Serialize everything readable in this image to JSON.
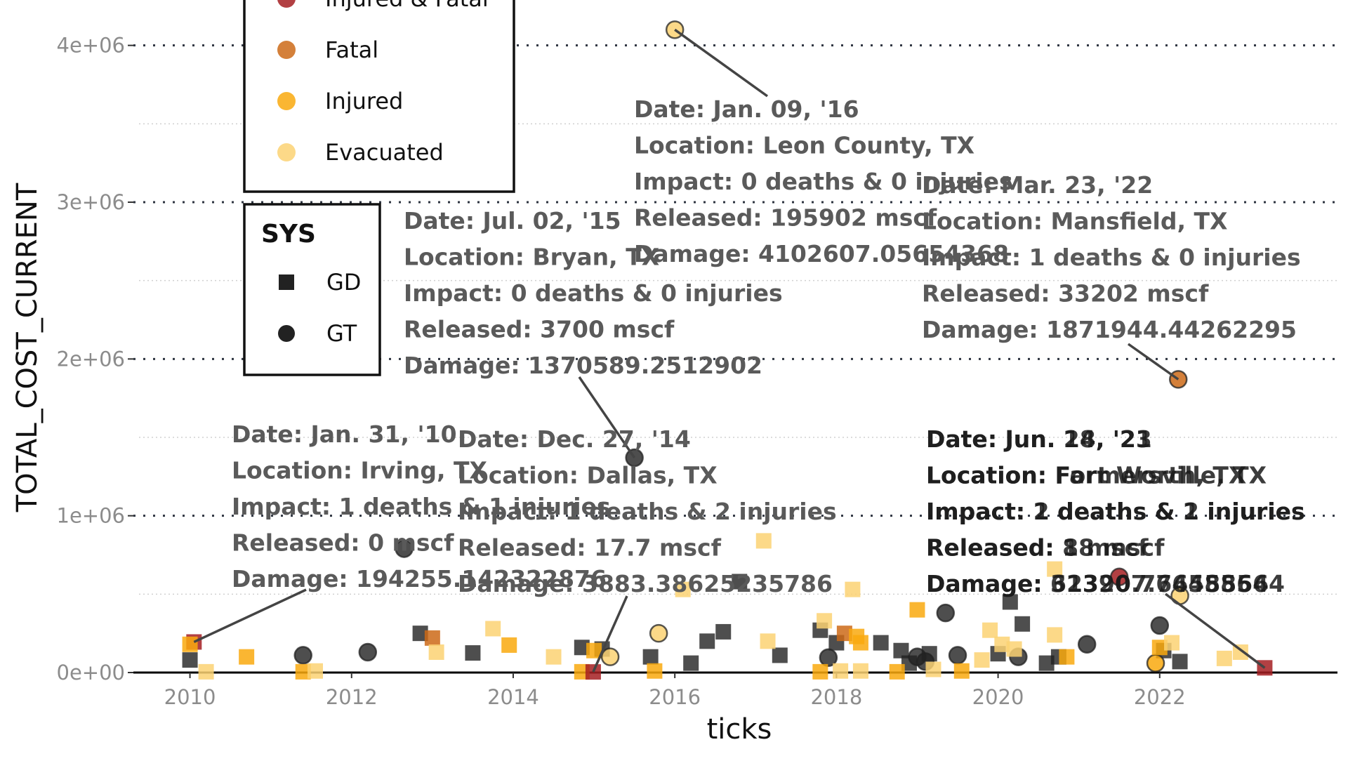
{
  "chart_data": {
    "type": "scatter",
    "xlabel": "ticks",
    "ylabel": "TOTAL_COST_CURRENT",
    "xlim": [
      2009.3,
      2024.2
    ],
    "ylim": [
      0,
      4200000
    ],
    "xticks": [
      2010,
      2012,
      2014,
      2016,
      2018,
      2020,
      2022
    ],
    "xtick_labels": [
      "2010",
      "2012",
      "2014",
      "2016",
      "2018",
      "2020",
      "2022"
    ],
    "yticks": [
      0,
      1000000,
      2000000,
      3000000,
      4000000
    ],
    "ytick_labels": [
      "0e+00",
      "1e+06",
      "2e+06",
      "3e+06",
      "4e+06"
    ],
    "grid": true,
    "legends": [
      {
        "title": "",
        "entries": [
          {
            "label": "Injured & Fatal",
            "color": "#A51E22"
          },
          {
            "label": "Fatal",
            "color": "#CC6A18"
          },
          {
            "label": "Injured",
            "color": "#F9A90E"
          },
          {
            "label": "Evacuated",
            "color": "#FCD273"
          }
        ]
      },
      {
        "title": "SYS",
        "entries": [
          {
            "label": "GD",
            "shape": "square",
            "color": "#222222"
          },
          {
            "label": "GT",
            "shape": "circle",
            "color": "#222222"
          }
        ]
      }
    ],
    "points": [
      {
        "x": 2010.05,
        "y": 195000,
        "sys": "GD",
        "cat": "Injured & Fatal"
      },
      {
        "x": 2010.0,
        "y": 180000,
        "sys": "GD",
        "cat": "Injured"
      },
      {
        "x": 2010.0,
        "y": 80000,
        "sys": "GD",
        "cat": "None"
      },
      {
        "x": 2010.2,
        "y": 5000,
        "sys": "GD",
        "cat": "Evacuated"
      },
      {
        "x": 2010.7,
        "y": 100000,
        "sys": "GD",
        "cat": "Injured"
      },
      {
        "x": 2011.4,
        "y": 110000,
        "sys": "GT",
        "cat": "None"
      },
      {
        "x": 2011.4,
        "y": 5000,
        "sys": "GD",
        "cat": "Injured"
      },
      {
        "x": 2011.55,
        "y": 10000,
        "sys": "GD",
        "cat": "Evacuated"
      },
      {
        "x": 2012.2,
        "y": 130000,
        "sys": "GT",
        "cat": "None"
      },
      {
        "x": 2012.65,
        "y": 790000,
        "sys": "GT",
        "cat": "None"
      },
      {
        "x": 2012.85,
        "y": 250000,
        "sys": "GD",
        "cat": "None"
      },
      {
        "x": 2013.0,
        "y": 220000,
        "sys": "GD",
        "cat": "Fatal"
      },
      {
        "x": 2013.05,
        "y": 130000,
        "sys": "GD",
        "cat": "Evacuated"
      },
      {
        "x": 2013.5,
        "y": 125000,
        "sys": "GD",
        "cat": "None"
      },
      {
        "x": 2013.75,
        "y": 280000,
        "sys": "GD",
        "cat": "Evacuated"
      },
      {
        "x": 2013.95,
        "y": 175000,
        "sys": "GD",
        "cat": "Injured"
      },
      {
        "x": 2014.5,
        "y": 100000,
        "sys": "GD",
        "cat": "Evacuated"
      },
      {
        "x": 2014.85,
        "y": 160000,
        "sys": "GD",
        "cat": "None"
      },
      {
        "x": 2014.85,
        "y": 5000,
        "sys": "GD",
        "cat": "Injured"
      },
      {
        "x": 2014.99,
        "y": 3900,
        "sys": "GD",
        "cat": "Injured & Fatal"
      },
      {
        "x": 2015.0,
        "y": 140000,
        "sys": "GD",
        "cat": "Injured"
      },
      {
        "x": 2015.1,
        "y": 150000,
        "sys": "GD",
        "cat": "None"
      },
      {
        "x": 2015.2,
        "y": 100000,
        "sys": "GT",
        "cat": "Evacuated"
      },
      {
        "x": 2015.5,
        "y": 1370000,
        "sys": "GT",
        "cat": "None"
      },
      {
        "x": 2015.7,
        "y": 100000,
        "sys": "GD",
        "cat": "None"
      },
      {
        "x": 2015.75,
        "y": 10000,
        "sys": "GD",
        "cat": "Injured"
      },
      {
        "x": 2015.8,
        "y": 250000,
        "sys": "GT",
        "cat": "Evacuated"
      },
      {
        "x": 2016.0,
        "y": 4100000,
        "sys": "GT",
        "cat": "Evacuated"
      },
      {
        "x": 2016.1,
        "y": 530000,
        "sys": "GD",
        "cat": "Evacuated"
      },
      {
        "x": 2016.2,
        "y": 60000,
        "sys": "GD",
        "cat": "None"
      },
      {
        "x": 2016.4,
        "y": 200000,
        "sys": "GD",
        "cat": "None"
      },
      {
        "x": 2016.6,
        "y": 260000,
        "sys": "GD",
        "cat": "None"
      },
      {
        "x": 2016.8,
        "y": 580000,
        "sys": "GD",
        "cat": "None"
      },
      {
        "x": 2017.1,
        "y": 840000,
        "sys": "GD",
        "cat": "Evacuated"
      },
      {
        "x": 2017.15,
        "y": 200000,
        "sys": "GD",
        "cat": "Evacuated"
      },
      {
        "x": 2017.3,
        "y": 110000,
        "sys": "GD",
        "cat": "None"
      },
      {
        "x": 2017.8,
        "y": 5000,
        "sys": "GD",
        "cat": "Injured"
      },
      {
        "x": 2017.8,
        "y": 270000,
        "sys": "GD",
        "cat": "None"
      },
      {
        "x": 2017.85,
        "y": 330000,
        "sys": "GD",
        "cat": "Evacuated"
      },
      {
        "x": 2017.9,
        "y": 95000,
        "sys": "GT",
        "cat": "None"
      },
      {
        "x": 2018.0,
        "y": 190000,
        "sys": "GD",
        "cat": "None"
      },
      {
        "x": 2018.05,
        "y": 10000,
        "sys": "GD",
        "cat": "Evacuated"
      },
      {
        "x": 2018.1,
        "y": 250000,
        "sys": "GD",
        "cat": "Fatal"
      },
      {
        "x": 2018.2,
        "y": 530000,
        "sys": "GD",
        "cat": "Evacuated"
      },
      {
        "x": 2018.25,
        "y": 230000,
        "sys": "GD",
        "cat": "Injured"
      },
      {
        "x": 2018.3,
        "y": 190000,
        "sys": "GD",
        "cat": "Injured"
      },
      {
        "x": 2018.3,
        "y": 10000,
        "sys": "GD",
        "cat": "Evacuated"
      },
      {
        "x": 2018.55,
        "y": 190000,
        "sys": "GD",
        "cat": "None"
      },
      {
        "x": 2018.75,
        "y": 5000,
        "sys": "GD",
        "cat": "Injured"
      },
      {
        "x": 2018.8,
        "y": 140000,
        "sys": "GD",
        "cat": "None"
      },
      {
        "x": 2018.9,
        "y": 60000,
        "sys": "GD",
        "cat": "None"
      },
      {
        "x": 2019.0,
        "y": 100000,
        "sys": "GT",
        "cat": "None"
      },
      {
        "x": 2019.1,
        "y": 70000,
        "sys": "GT",
        "cat": "None"
      },
      {
        "x": 2019.15,
        "y": 120000,
        "sys": "GD",
        "cat": "None"
      },
      {
        "x": 2019.2,
        "y": 20000,
        "sys": "GD",
        "cat": "Evacuated"
      },
      {
        "x": 2019.0,
        "y": 400000,
        "sys": "GD",
        "cat": "Injured"
      },
      {
        "x": 2019.35,
        "y": 380000,
        "sys": "GT",
        "cat": "None"
      },
      {
        "x": 2019.5,
        "y": 110000,
        "sys": "GT",
        "cat": "None"
      },
      {
        "x": 2019.55,
        "y": 10000,
        "sys": "GD",
        "cat": "Injured"
      },
      {
        "x": 2019.8,
        "y": 80000,
        "sys": "GD",
        "cat": "Evacuated"
      },
      {
        "x": 2019.9,
        "y": 270000,
        "sys": "GD",
        "cat": "Evacuated"
      },
      {
        "x": 2020.0,
        "y": 120000,
        "sys": "GD",
        "cat": "None"
      },
      {
        "x": 2020.05,
        "y": 180000,
        "sys": "GD",
        "cat": "Evacuated"
      },
      {
        "x": 2020.15,
        "y": 450000,
        "sys": "GD",
        "cat": "None"
      },
      {
        "x": 2020.2,
        "y": 150000,
        "sys": "GD",
        "cat": "Evacuated"
      },
      {
        "x": 2020.25,
        "y": 100000,
        "sys": "GT",
        "cat": "None"
      },
      {
        "x": 2020.3,
        "y": 310000,
        "sys": "GD",
        "cat": "None"
      },
      {
        "x": 2020.6,
        "y": 60000,
        "sys": "GD",
        "cat": "None"
      },
      {
        "x": 2020.7,
        "y": 660000,
        "sys": "GD",
        "cat": "Evacuated"
      },
      {
        "x": 2020.7,
        "y": 240000,
        "sys": "GD",
        "cat": "Evacuated"
      },
      {
        "x": 2020.75,
        "y": 100000,
        "sys": "GD",
        "cat": "None"
      },
      {
        "x": 2020.85,
        "y": 100000,
        "sys": "GD",
        "cat": "Injured"
      },
      {
        "x": 2021.1,
        "y": 180000,
        "sys": "GT",
        "cat": "None"
      },
      {
        "x": 2021.5,
        "y": 610000,
        "sys": "GT",
        "cat": "Injured & Fatal"
      },
      {
        "x": 2021.95,
        "y": 60000,
        "sys": "GT",
        "cat": "Injured"
      },
      {
        "x": 2022.0,
        "y": 300000,
        "sys": "GT",
        "cat": "None"
      },
      {
        "x": 2022.0,
        "y": 160000,
        "sys": "GD",
        "cat": "Injured"
      },
      {
        "x": 2022.05,
        "y": 140000,
        "sys": "GD",
        "cat": "None"
      },
      {
        "x": 2022.15,
        "y": 190000,
        "sys": "GD",
        "cat": "Evacuated"
      },
      {
        "x": 2022.23,
        "y": 1870000,
        "sys": "GT",
        "cat": "Fatal"
      },
      {
        "x": 2022.25,
        "y": 70000,
        "sys": "GD",
        "cat": "None"
      },
      {
        "x": 2022.25,
        "y": 490000,
        "sys": "GT",
        "cat": "Evacuated"
      },
      {
        "x": 2022.8,
        "y": 90000,
        "sys": "GD",
        "cat": "Evacuated"
      },
      {
        "x": 2023.0,
        "y": 130000,
        "sys": "GD",
        "cat": "Evacuated"
      },
      {
        "x": 2023.3,
        "y": 30000,
        "sys": "GD",
        "cat": "Injured & Fatal"
      }
    ],
    "annotations": [
      {
        "lines": [
          "Date: Jan. 09, '16",
          "Location: Leon County, TX",
          "Impact: 0 deaths & 0 injuries",
          "Released: 195902 mscf",
          "Damage: 4102607.05654368"
        ],
        "point": [
          2016.0,
          4100000
        ]
      },
      {
        "lines": [
          "Date: Mar. 23, '22",
          "Location: Mansfield, TX",
          "Impact: 1 deaths & 0 injuries",
          "Released: 33202 mscf",
          "Damage: 1871944.44262295"
        ],
        "point": [
          2022.23,
          1870000
        ]
      },
      {
        "lines": [
          "Date: Jul. 02, '15",
          "Location: Bryan, TX",
          "Impact: 0 deaths & 0 injuries",
          "Released: 3700 mscf",
          "Damage: 1370589.2512902"
        ],
        "point": [
          2015.5,
          1370000
        ]
      },
      {
        "lines": [
          "Date: Jan. 31, '10",
          "Location: Irving, TX",
          "Impact: 1 deaths & 1 injuries",
          "Released: 0 mscf",
          "Damage: 194255.142322876"
        ],
        "point": [
          2010.05,
          195000
        ]
      },
      {
        "lines": [
          "Date: Dec. 27, '14",
          "Location: Dallas, TX",
          "Impact: 1 deaths & 2 injuries",
          "Released: 17.7 mscf",
          "Damage: 3883.38625235786"
        ],
        "point": [
          2014.99,
          3900
        ]
      },
      {
        "lines": [
          "Date: Jun. 28, '23",
          "Location: Farmersville, TX",
          "Impact: 2 deaths & 1 injuries",
          "Released: 18 mscf",
          "Damage: 32320.76458564"
        ],
        "point": [
          2023.3,
          30000
        ]
      },
      {
        "lines": [
          "Date: Jun. 14, '21",
          "Location: Fort Worth, TX",
          "Impact: 1 deaths & 2 injuries",
          "Released: 8 mscf",
          "Damage: 613907.76458564"
        ],
        "point": null
      }
    ]
  }
}
